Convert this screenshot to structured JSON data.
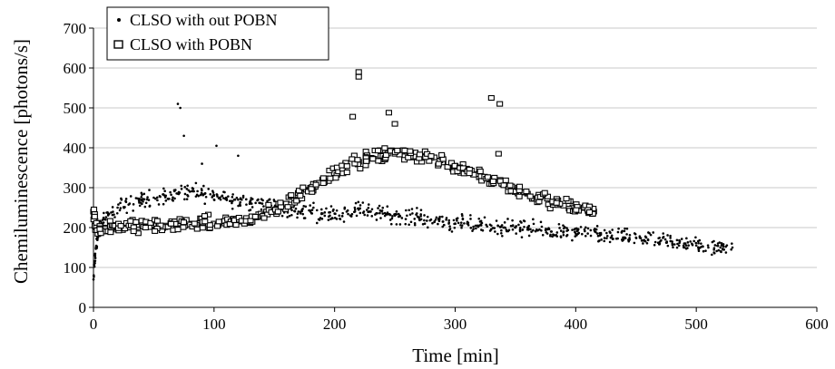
{
  "chart_data": {
    "type": "scatter",
    "title": "",
    "xlabel": "Time [min]",
    "ylabel": "Chemiluminescence [photons/s]",
    "xlim": [
      0,
      600
    ],
    "ylim": [
      0,
      700
    ],
    "xticks": [
      0,
      100,
      200,
      300,
      400,
      500,
      600
    ],
    "yticks": [
      0,
      100,
      200,
      300,
      400,
      500,
      600,
      700
    ],
    "grid": "horizontal",
    "legend_position": "top-left",
    "colors": {
      "marker": "#000000",
      "grid": "#c8c8c8"
    },
    "series": [
      {
        "name": "CLSO with out POBN",
        "marker": "dot",
        "x": [
          0,
          2,
          5,
          10,
          20,
          30,
          40,
          50,
          60,
          70,
          80,
          90,
          100,
          110,
          120,
          130,
          140,
          150,
          160,
          170,
          180,
          190,
          200,
          210,
          220,
          230,
          240,
          250,
          260,
          270,
          280,
          290,
          300,
          310,
          320,
          330,
          340,
          350,
          360,
          370,
          380,
          390,
          400,
          410,
          420,
          430,
          440,
          450,
          460,
          470,
          480,
          490,
          500,
          510,
          520,
          530
        ],
        "y": [
          70,
          150,
          200,
          220,
          250,
          260,
          270,
          275,
          280,
          285,
          290,
          285,
          280,
          275,
          270,
          265,
          260,
          250,
          245,
          240,
          240,
          235,
          235,
          240,
          245,
          240,
          235,
          230,
          230,
          225,
          220,
          215,
          210,
          210,
          205,
          205,
          200,
          200,
          195,
          195,
          190,
          190,
          185,
          185,
          180,
          180,
          175,
          175,
          170,
          165,
          165,
          160,
          155,
          150,
          150,
          150
        ],
        "outliers": [
          [
            70,
            510
          ],
          [
            72,
            500
          ],
          [
            75,
            430
          ],
          [
            102,
            405
          ],
          [
            90,
            360
          ],
          [
            120,
            380
          ]
        ]
      },
      {
        "name": "CLSO with POBN",
        "marker": "square",
        "x": [
          0,
          2,
          5,
          10,
          20,
          30,
          40,
          50,
          60,
          70,
          80,
          90,
          100,
          110,
          120,
          130,
          140,
          150,
          160,
          170,
          180,
          190,
          200,
          210,
          220,
          230,
          240,
          250,
          260,
          270,
          280,
          290,
          300,
          310,
          320,
          330,
          340,
          350,
          360,
          370,
          380,
          390,
          400,
          410,
          415
        ],
        "y": [
          240,
          200,
          195,
          200,
          200,
          200,
          205,
          205,
          205,
          210,
          210,
          210,
          210,
          215,
          215,
          220,
          230,
          240,
          260,
          280,
          300,
          320,
          340,
          355,
          365,
          375,
          380,
          385,
          385,
          380,
          375,
          365,
          355,
          345,
          335,
          320,
          310,
          295,
          285,
          275,
          265,
          255,
          250,
          245,
          240
        ],
        "outliers": [
          [
            220,
            590
          ],
          [
            220,
            578
          ],
          [
            215,
            478
          ],
          [
            245,
            488
          ],
          [
            250,
            460
          ],
          [
            330,
            525
          ],
          [
            337,
            510
          ],
          [
            336,
            385
          ]
        ]
      }
    ]
  }
}
